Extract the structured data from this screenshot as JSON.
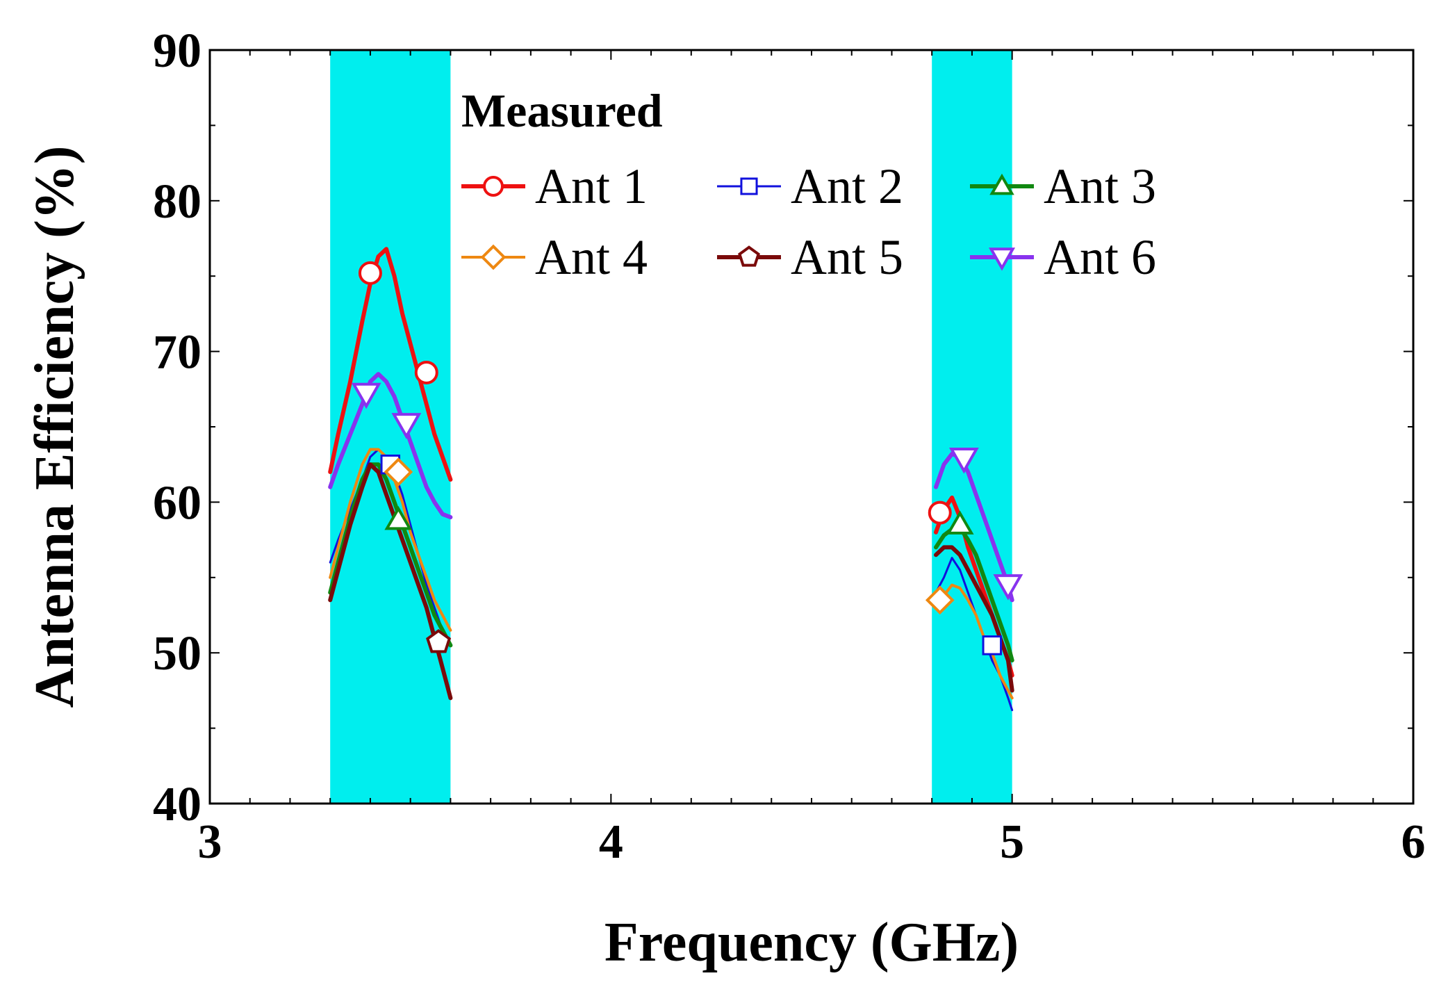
{
  "chart_data": {
    "type": "line",
    "title": "",
    "xlabel": "Frequency (GHz)",
    "ylabel": "Antenna Efficiency (%)",
    "xlim": [
      3,
      6
    ],
    "ylim": [
      40,
      90
    ],
    "xticks": [
      3,
      4,
      5,
      6
    ],
    "yticks": [
      40,
      50,
      60,
      70,
      80,
      90
    ],
    "grid": false,
    "highlight_bands": [
      {
        "x0": 3.3,
        "x1": 3.6,
        "color": "#00eeee"
      },
      {
        "x0": 4.8,
        "x1": 5.0,
        "color": "#00eeee"
      }
    ],
    "legend": {
      "title": "Measured",
      "position": "top-center"
    },
    "series": [
      {
        "name": "Ant 1",
        "color": "#ee1111",
        "marker": "circle",
        "width": 6,
        "segments": [
          [
            [
              3.3,
              62
            ],
            [
              3.32,
              64.5
            ],
            [
              3.35,
              68
            ],
            [
              3.38,
              72
            ],
            [
              3.4,
              74.5
            ],
            [
              3.42,
              76.3
            ],
            [
              3.44,
              76.8
            ],
            [
              3.46,
              75
            ],
            [
              3.48,
              72.5
            ],
            [
              3.5,
              70.5
            ],
            [
              3.52,
              68.5
            ],
            [
              3.54,
              66.5
            ],
            [
              3.56,
              64.5
            ],
            [
              3.58,
              63
            ],
            [
              3.6,
              61.5
            ]
          ],
          [
            [
              4.81,
              58
            ],
            [
              4.83,
              59.5
            ],
            [
              4.85,
              60.3
            ],
            [
              4.87,
              59
            ],
            [
              4.89,
              57
            ],
            [
              4.91,
              55.5
            ],
            [
              4.93,
              54
            ],
            [
              4.95,
              52.5
            ],
            [
              4.97,
              51
            ],
            [
              4.99,
              49.5
            ],
            [
              5.0,
              48.5
            ]
          ]
        ],
        "markers": [
          [
            3.4,
            75.2
          ],
          [
            3.54,
            68.6
          ],
          [
            4.82,
            59.3
          ]
        ]
      },
      {
        "name": "Ant 2",
        "color": "#1111dd",
        "marker": "square",
        "width": 3,
        "segments": [
          [
            [
              3.3,
              56
            ],
            [
              3.32,
              57.5
            ],
            [
              3.35,
              59.5
            ],
            [
              3.38,
              61.5
            ],
            [
              3.4,
              63
            ],
            [
              3.42,
              63.5
            ],
            [
              3.44,
              63
            ],
            [
              3.46,
              62
            ],
            [
              3.48,
              60.5
            ],
            [
              3.5,
              58.5
            ],
            [
              3.52,
              56.5
            ],
            [
              3.54,
              54.5
            ],
            [
              3.56,
              53
            ],
            [
              3.58,
              51.5
            ],
            [
              3.6,
              50.5
            ]
          ],
          [
            [
              4.81,
              54
            ],
            [
              4.83,
              55
            ],
            [
              4.85,
              56.3
            ],
            [
              4.87,
              55.5
            ],
            [
              4.89,
              54
            ],
            [
              4.91,
              52.5
            ],
            [
              4.93,
              51
            ],
            [
              4.95,
              49.5
            ],
            [
              4.97,
              48.5
            ],
            [
              4.99,
              47
            ],
            [
              5.0,
              46.2
            ]
          ]
        ],
        "markers": [
          [
            3.45,
            62.5
          ],
          [
            4.95,
            50.5
          ]
        ]
      },
      {
        "name": "Ant 3",
        "color": "#118811",
        "marker": "triangle",
        "width": 6,
        "segments": [
          [
            [
              3.3,
              54
            ],
            [
              3.32,
              56
            ],
            [
              3.35,
              59
            ],
            [
              3.38,
              61.5
            ],
            [
              3.4,
              62.5
            ],
            [
              3.42,
              62.5
            ],
            [
              3.44,
              61.5
            ],
            [
              3.46,
              60
            ],
            [
              3.48,
              58.5
            ],
            [
              3.5,
              57
            ],
            [
              3.52,
              55.5
            ],
            [
              3.54,
              54
            ],
            [
              3.56,
              52.5
            ],
            [
              3.58,
              51.5
            ],
            [
              3.6,
              50.5
            ]
          ],
          [
            [
              4.81,
              57
            ],
            [
              4.83,
              57.8
            ],
            [
              4.85,
              58.2
            ],
            [
              4.87,
              58.3
            ],
            [
              4.89,
              57.5
            ],
            [
              4.91,
              56.5
            ],
            [
              4.93,
              55
            ],
            [
              4.95,
              53.5
            ],
            [
              4.97,
              52
            ],
            [
              4.99,
              50.5
            ],
            [
              5.0,
              49.5
            ]
          ]
        ],
        "markers": [
          [
            3.47,
            58.8
          ],
          [
            4.87,
            58.5
          ]
        ]
      },
      {
        "name": "Ant 4",
        "color": "#ee8811",
        "marker": "diamond",
        "width": 4,
        "segments": [
          [
            [
              3.3,
              55
            ],
            [
              3.32,
              57
            ],
            [
              3.35,
              60
            ],
            [
              3.38,
              62.5
            ],
            [
              3.4,
              63.5
            ],
            [
              3.42,
              63.5
            ],
            [
              3.44,
              63
            ],
            [
              3.46,
              61.5
            ],
            [
              3.48,
              60
            ],
            [
              3.5,
              58
            ],
            [
              3.52,
              56.5
            ],
            [
              3.54,
              55
            ],
            [
              3.56,
              53.5
            ],
            [
              3.58,
              52.5
            ],
            [
              3.6,
              51.5
            ]
          ],
          [
            [
              4.81,
              53
            ],
            [
              4.83,
              53.8
            ],
            [
              4.85,
              54.5
            ],
            [
              4.87,
              54.3
            ],
            [
              4.89,
              53.5
            ],
            [
              4.91,
              52.5
            ],
            [
              4.93,
              51
            ],
            [
              4.95,
              50
            ],
            [
              4.97,
              48.5
            ],
            [
              4.99,
              47.5
            ],
            [
              5.0,
              47
            ]
          ]
        ],
        "markers": [
          [
            3.47,
            62
          ],
          [
            4.82,
            53.5
          ]
        ]
      },
      {
        "name": "Ant 5",
        "color": "#7a0a0a",
        "marker": "pentagon",
        "width": 6,
        "segments": [
          [
            [
              3.3,
              53.5
            ],
            [
              3.32,
              55.5
            ],
            [
              3.35,
              58.5
            ],
            [
              3.38,
              61
            ],
            [
              3.4,
              62.5
            ],
            [
              3.42,
              62
            ],
            [
              3.44,
              60.5
            ],
            [
              3.46,
              59
            ],
            [
              3.48,
              57.5
            ],
            [
              3.5,
              56
            ],
            [
              3.52,
              54.5
            ],
            [
              3.54,
              53
            ],
            [
              3.56,
              51
            ],
            [
              3.58,
              49
            ],
            [
              3.6,
              47
            ]
          ],
          [
            [
              4.81,
              56.5
            ],
            [
              4.83,
              57
            ],
            [
              4.85,
              57
            ],
            [
              4.87,
              56.5
            ],
            [
              4.89,
              55.5
            ],
            [
              4.91,
              54.5
            ],
            [
              4.93,
              53.5
            ],
            [
              4.95,
              52.5
            ],
            [
              4.97,
              51
            ],
            [
              4.99,
              49.5
            ],
            [
              5.0,
              47.5
            ]
          ]
        ],
        "markers": [
          [
            3.57,
            50.7
          ]
        ]
      },
      {
        "name": "Ant 6",
        "color": "#8833ee",
        "marker": "triangle-down",
        "width": 6,
        "segments": [
          [
            [
              3.3,
              61
            ],
            [
              3.32,
              62.5
            ],
            [
              3.35,
              64.5
            ],
            [
              3.38,
              66.5
            ],
            [
              3.4,
              68
            ],
            [
              3.42,
              68.5
            ],
            [
              3.44,
              68
            ],
            [
              3.46,
              67
            ],
            [
              3.48,
              65.5
            ],
            [
              3.5,
              64
            ],
            [
              3.52,
              62.5
            ],
            [
              3.54,
              61
            ],
            [
              3.56,
              60
            ],
            [
              3.58,
              59.2
            ],
            [
              3.6,
              59
            ]
          ],
          [
            [
              4.81,
              61
            ],
            [
              4.83,
              62.5
            ],
            [
              4.85,
              63.2
            ],
            [
              4.87,
              63
            ],
            [
              4.89,
              62
            ],
            [
              4.91,
              60.5
            ],
            [
              4.93,
              59
            ],
            [
              4.95,
              57.5
            ],
            [
              4.97,
              56
            ],
            [
              4.99,
              54.5
            ],
            [
              5.0,
              53.5
            ]
          ]
        ],
        "markers": [
          [
            3.39,
            67.2
          ],
          [
            3.49,
            65.2
          ],
          [
            4.88,
            62.9
          ],
          [
            4.99,
            54.5
          ]
        ]
      }
    ]
  }
}
